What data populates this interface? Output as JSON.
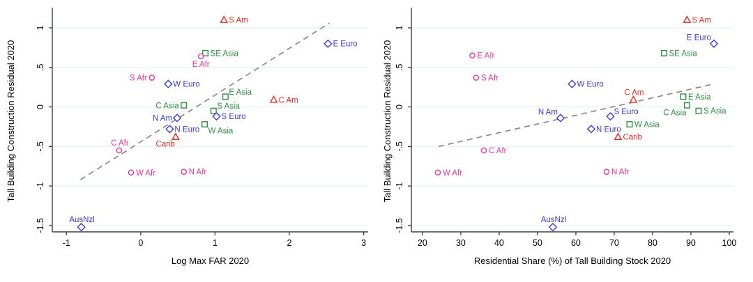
{
  "figure": {
    "background": "#ffffff",
    "grid_color": "#e4f2f2",
    "axis_color": "#404040",
    "trend_color": "#8a8a8a",
    "text_color": "#000000",
    "groups": {
      "africa": {
        "color": "#f0359b",
        "marker": "circle"
      },
      "west": {
        "color": "#3b3bd8",
        "marker": "diamond"
      },
      "asia": {
        "color": "#2d9040",
        "marker": "square"
      },
      "americas": {
        "color": "#e82a21",
        "marker": "triangle"
      }
    }
  },
  "chart_data": [
    {
      "type": "scatter",
      "title": "",
      "xlabel": "Log Max FAR 2020",
      "ylabel": "Tall Building Construction Residual 2020",
      "xlim": [
        -1.19,
        3.06
      ],
      "ylim": [
        -1.58,
        1.22
      ],
      "xticks": [
        -1,
        0,
        1,
        2,
        3
      ],
      "xtick_labels": [
        "-1",
        "0",
        "1",
        "2",
        "3"
      ],
      "yticks": [
        -1.5,
        -1,
        -0.5,
        0,
        0.5,
        1
      ],
      "ytick_labels": [
        "-1.5",
        "-1",
        "-.5",
        "0",
        ".5",
        "1"
      ],
      "grid": "horizontal",
      "legend": "none",
      "trend_line": {
        "style": "dashed",
        "x": [
          -0.81,
          2.54
        ],
        "y": [
          -0.92,
          1.06
        ]
      },
      "points": [
        {
          "label": "S Am",
          "group": "americas",
          "x": 1.12,
          "y": 1.1,
          "label_anchor": "right"
        },
        {
          "label": "E Euro",
          "group": "west",
          "x": 2.52,
          "y": 0.8,
          "label_anchor": "right"
        },
        {
          "label": "SE Asia",
          "group": "asia",
          "x": 0.87,
          "y": 0.68,
          "label_anchor": "right"
        },
        {
          "label": "E Afr",
          "group": "africa",
          "x": 0.81,
          "y": 0.64,
          "label_anchor": "below"
        },
        {
          "label": "S Afr",
          "group": "africa",
          "x": 0.15,
          "y": 0.37,
          "label_anchor": "left"
        },
        {
          "label": "W Euro",
          "group": "west",
          "x": 0.37,
          "y": 0.29,
          "label_anchor": "right"
        },
        {
          "label": "E Asia",
          "group": "asia",
          "x": 1.14,
          "y": 0.13,
          "label_anchor": "above-right"
        },
        {
          "label": "C Am",
          "group": "americas",
          "x": 1.79,
          "y": 0.09,
          "label_anchor": "right"
        },
        {
          "label": "C Asia",
          "group": "asia",
          "x": 0.58,
          "y": 0.02,
          "label_anchor": "left"
        },
        {
          "label": "S Asia",
          "group": "asia",
          "x": 0.98,
          "y": -0.05,
          "label_anchor": "above-right"
        },
        {
          "label": "S Euro",
          "group": "west",
          "x": 1.02,
          "y": -0.12,
          "label_anchor": "right"
        },
        {
          "label": "N Am",
          "group": "west",
          "x": 0.49,
          "y": -0.14,
          "label_anchor": "left"
        },
        {
          "label": "W Asia",
          "group": "asia",
          "x": 0.86,
          "y": -0.22,
          "label_anchor": "below-right"
        },
        {
          "label": "N Euro",
          "group": "west",
          "x": 0.39,
          "y": -0.28,
          "label_anchor": "right"
        },
        {
          "label": "Carib",
          "group": "americas",
          "x": 0.47,
          "y": -0.38,
          "label_anchor": "below-left"
        },
        {
          "label": "C Afr",
          "group": "africa",
          "x": -0.29,
          "y": -0.55,
          "label_anchor": "above"
        },
        {
          "label": "W Afr",
          "group": "africa",
          "x": -0.13,
          "y": -0.83,
          "label_anchor": "right"
        },
        {
          "label": "N Afr",
          "group": "africa",
          "x": 0.58,
          "y": -0.82,
          "label_anchor": "right"
        },
        {
          "label": "AusNzl",
          "group": "west",
          "x": -0.8,
          "y": -1.52,
          "label_anchor": "above"
        }
      ]
    },
    {
      "type": "scatter",
      "title": "",
      "xlabel": "Residential Share (%) of Tall Building Stock 2020",
      "ylabel": "Tall Building Construction Residual 2020",
      "xlim": [
        17.1,
        101.1
      ],
      "ylim": [
        -1.58,
        1.22
      ],
      "xticks": [
        20,
        30,
        40,
        50,
        60,
        70,
        80,
        90,
        100
      ],
      "xtick_labels": [
        "20",
        "30",
        "40",
        "50",
        "60",
        "70",
        "80",
        "90",
        "100"
      ],
      "yticks": [
        -1.5,
        -1,
        -0.5,
        0,
        0.5,
        1
      ],
      "ytick_labels": [
        "-1.5",
        "-1",
        "-.5",
        "0",
        ".5",
        "1"
      ],
      "grid": "horizontal",
      "legend": "none",
      "trend_line": {
        "style": "dashed",
        "x": [
          24.2,
          95.9
        ],
        "y": [
          -0.5,
          0.29
        ]
      },
      "points": [
        {
          "label": "S Am",
          "group": "americas",
          "x": 89,
          "y": 1.1,
          "label_anchor": "right"
        },
        {
          "label": "E Euro",
          "group": "west",
          "x": 96,
          "y": 0.8,
          "label_anchor": "above-left"
        },
        {
          "label": "SE Asia",
          "group": "asia",
          "x": 83,
          "y": 0.68,
          "label_anchor": "right"
        },
        {
          "label": "E Afr",
          "group": "africa",
          "x": 33,
          "y": 0.65,
          "label_anchor": "right"
        },
        {
          "label": "S Afr",
          "group": "africa",
          "x": 34,
          "y": 0.37,
          "label_anchor": "right"
        },
        {
          "label": "W Euro",
          "group": "west",
          "x": 59,
          "y": 0.29,
          "label_anchor": "right"
        },
        {
          "label": "E Asia",
          "group": "asia",
          "x": 88,
          "y": 0.13,
          "label_anchor": "right"
        },
        {
          "label": "C Am",
          "group": "americas",
          "x": 75,
          "y": 0.09,
          "label_anchor": "above"
        },
        {
          "label": "C Asia",
          "group": "asia",
          "x": 89,
          "y": 0.02,
          "label_anchor": "below-left"
        },
        {
          "label": "S Asia",
          "group": "asia",
          "x": 92,
          "y": -0.05,
          "label_anchor": "right"
        },
        {
          "label": "S Euro",
          "group": "west",
          "x": 69,
          "y": -0.12,
          "label_anchor": "above-right"
        },
        {
          "label": "N Am",
          "group": "west",
          "x": 56,
          "y": -0.14,
          "label_anchor": "above-left"
        },
        {
          "label": "W Asia",
          "group": "asia",
          "x": 74,
          "y": -0.22,
          "label_anchor": "right"
        },
        {
          "label": "N Euro",
          "group": "west",
          "x": 64,
          "y": -0.28,
          "label_anchor": "right"
        },
        {
          "label": "Carib",
          "group": "americas",
          "x": 71,
          "y": -0.38,
          "label_anchor": "right"
        },
        {
          "label": "C Afr",
          "group": "africa",
          "x": 36,
          "y": -0.55,
          "label_anchor": "right"
        },
        {
          "label": "W Afr",
          "group": "africa",
          "x": 24,
          "y": -0.83,
          "label_anchor": "right"
        },
        {
          "label": "N Afr",
          "group": "africa",
          "x": 68,
          "y": -0.82,
          "label_anchor": "right"
        },
        {
          "label": "AusNzl",
          "group": "west",
          "x": 54,
          "y": -1.52,
          "label_anchor": "above"
        }
      ]
    }
  ]
}
